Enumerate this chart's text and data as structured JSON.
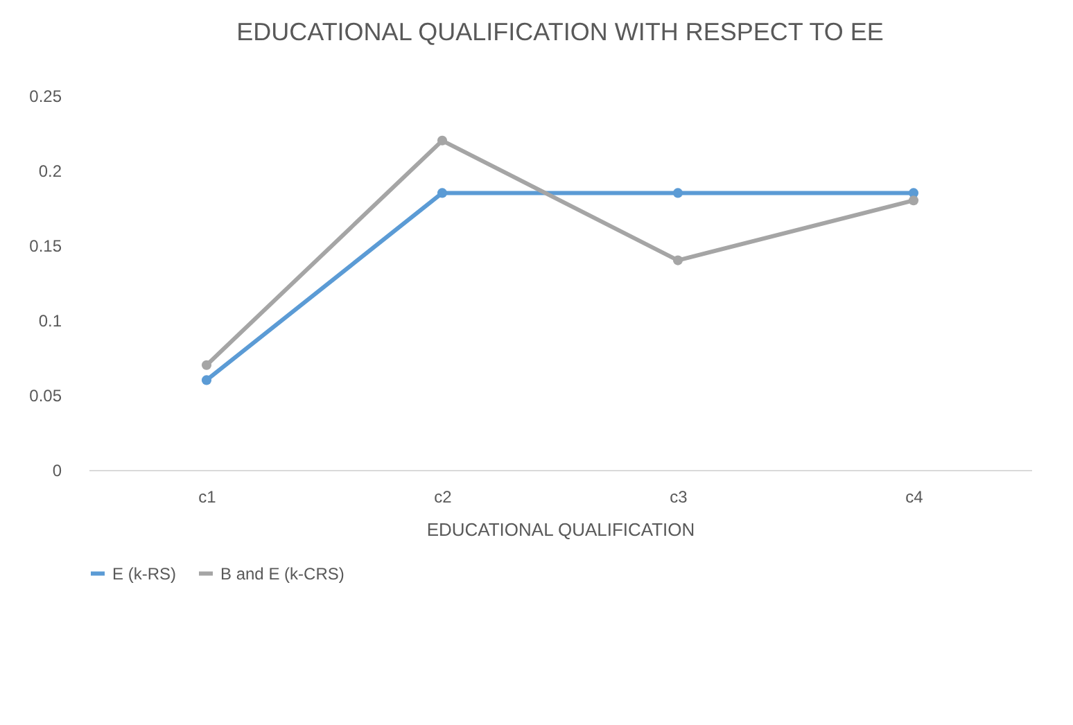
{
  "chart_data": {
    "type": "line",
    "title": "EDUCATIONAL QUALIFICATION WITH RESPECT TO EE",
    "xlabel": "EDUCATIONAL  QUALIFICATION",
    "categories": [
      "c1",
      "c2",
      "c3",
      "c4"
    ],
    "series": [
      {
        "name": "E (k-RS)",
        "color": "#5b9bd5",
        "values": [
          0.06,
          0.185,
          0.185,
          0.185
        ]
      },
      {
        "name": "B and E (k-CRS)",
        "color": "#a5a5a5",
        "values": [
          0.07,
          0.22,
          0.14,
          0.18
        ]
      }
    ],
    "ylim": [
      0,
      0.25
    ],
    "yticks": [
      0,
      0.05,
      0.1,
      0.15,
      0.2,
      0.25
    ],
    "legend": "bottom",
    "marker": "circle"
  }
}
